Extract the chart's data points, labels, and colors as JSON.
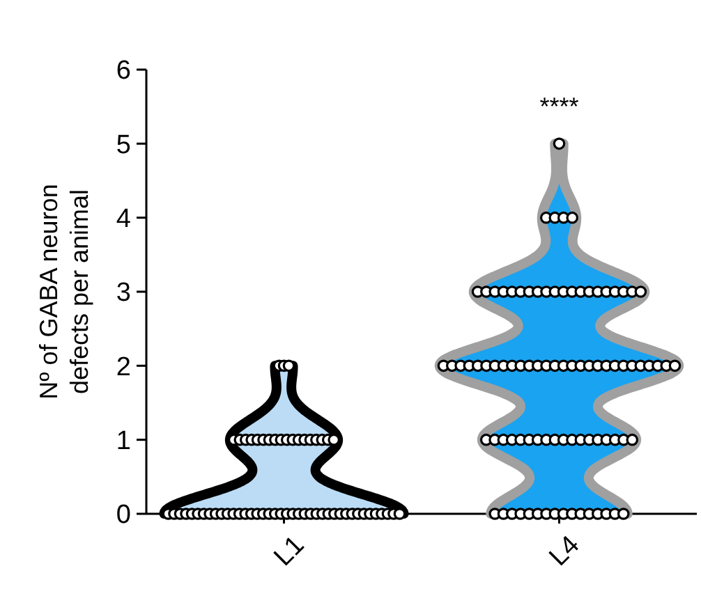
{
  "chart_data": {
    "type": "scatter",
    "categories": [
      "L1",
      "L4"
    ],
    "ylabel": "Nº of GABA neuron\ndefects per animal",
    "ylim": [
      0,
      6
    ],
    "yticks": [
      0,
      1,
      2,
      3,
      4,
      5,
      6
    ],
    "grid": false,
    "marker": "circle",
    "series": [
      {
        "color": "#ffffff",
        "x": [
          "L1",
          "L1",
          "L1",
          "L1",
          "L1",
          "L1",
          "L1",
          "L1",
          "L1",
          "L1",
          "L1",
          "L1",
          "L1",
          "L1",
          "L1",
          "L1",
          "L1",
          "L1",
          "L1",
          "L1",
          "L1",
          "L1",
          "L1",
          "L1",
          "L1",
          "L1",
          "L1",
          "L1",
          "L1",
          "L1",
          "L1",
          "L1",
          "L1",
          "L1",
          "L1",
          "L1",
          "L1",
          "L1",
          "L1",
          "L1",
          "L1",
          "L1",
          "L1",
          "L1",
          "L1",
          "L1",
          "L1",
          "L1",
          "L1",
          "L1",
          "L1",
          "L1",
          "L1",
          "L1",
          "L1",
          "L1",
          "L1",
          "L1",
          "L1",
          "L1",
          "L1"
        ],
        "values": [
          0,
          0,
          0,
          0,
          0,
          0,
          0,
          0,
          0,
          0,
          0,
          0,
          0,
          0,
          0,
          0,
          0,
          0,
          0,
          0,
          0,
          0,
          0,
          0,
          0,
          0,
          0,
          0,
          0,
          0,
          0,
          0,
          0,
          0,
          0,
          0,
          0,
          0,
          0,
          0,
          1,
          1,
          1,
          1,
          1,
          1,
          1,
          1,
          1,
          1,
          1,
          1,
          1,
          1,
          1,
          1,
          1,
          1,
          2,
          2,
          2
        ]
      },
      {
        "color": "#ffffff",
        "x": [
          "L4",
          "L4",
          "L4",
          "L4",
          "L4",
          "L4",
          "L4",
          "L4",
          "L4",
          "L4",
          "L4",
          "L4",
          "L4",
          "L4",
          "L4",
          "L4",
          "L4",
          "L4",
          "L4",
          "L4",
          "L4",
          "L4",
          "L4",
          "L4",
          "L4",
          "L4",
          "L4",
          "L4",
          "L4",
          "L4",
          "L4",
          "L4",
          "L4",
          "L4",
          "L4",
          "L4",
          "L4",
          "L4",
          "L4",
          "L4",
          "L4",
          "L4",
          "L4",
          "L4",
          "L4",
          "L4",
          "L4",
          "L4",
          "L4",
          "L4",
          "L4",
          "L4",
          "L4",
          "L4",
          "L4",
          "L4",
          "L4",
          "L4",
          "L4",
          "L4",
          "L4",
          "L4",
          "L4",
          "L4",
          "L4",
          "L4",
          "L4",
          "L4",
          "L4",
          "L4",
          "L4",
          "L4",
          "L4",
          "L4",
          "L4",
          "L4",
          "L4",
          "L4",
          "L4",
          "L4",
          "L4",
          "L4",
          "L4",
          "L4",
          "L4",
          "L4",
          "L4"
        ],
        "values": [
          0,
          0,
          0,
          0,
          0,
          0,
          0,
          0,
          0,
          0,
          0,
          0,
          0,
          0,
          0,
          0,
          1,
          1,
          1,
          1,
          1,
          1,
          1,
          1,
          1,
          1,
          1,
          1,
          1,
          1,
          1,
          1,
          1,
          1,
          2,
          2,
          2,
          2,
          2,
          2,
          2,
          2,
          2,
          2,
          2,
          2,
          2,
          2,
          2,
          2,
          2,
          2,
          2,
          2,
          2,
          2,
          2,
          2,
          2,
          2,
          2,
          2,
          3,
          3,
          3,
          3,
          3,
          3,
          3,
          3,
          3,
          3,
          3,
          3,
          3,
          3,
          3,
          3,
          3,
          3,
          3,
          3,
          4,
          4,
          4,
          4,
          5
        ]
      }
    ],
    "annotations": [
      "****"
    ]
  }
}
